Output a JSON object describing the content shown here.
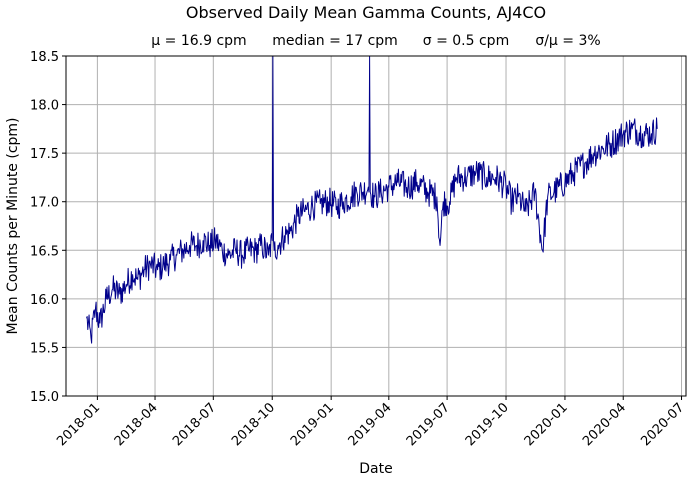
{
  "chart_data": {
    "type": "line",
    "title": "Observed Daily Mean Gamma Counts, AJ4CO",
    "stats": {
      "mean": "μ = 16.9 cpm",
      "median": "median = 17 cpm",
      "std": "σ = 0.5 cpm",
      "cv": "σ/μ = 3%"
    },
    "xlabel": "Date",
    "ylabel": "Mean Counts per Minute (cpm)",
    "xlim": [
      "2017-11-13",
      "2020-07-08"
    ],
    "ylim": [
      15.0,
      18.5
    ],
    "grid": true,
    "line_color": "#00008b",
    "x_ticks": [
      "2018-01",
      "2018-04",
      "2018-07",
      "2018-10",
      "2019-01",
      "2019-04",
      "2019-07",
      "2019-10",
      "2020-01",
      "2020-04",
      "2020-07"
    ],
    "y_ticks": [
      "15.0",
      "15.5",
      "16.0",
      "16.5",
      "17.0",
      "17.5",
      "18.0",
      "18.5"
    ],
    "series": [
      {
        "x": [
          "2017-12-15",
          "2017-12-22",
          "2017-12-29",
          "2018-01-05",
          "2018-01-15",
          "2018-01-25",
          "2018-02-05",
          "2018-02-15",
          "2018-02-25",
          "2018-03-05",
          "2018-03-15",
          "2018-03-25",
          "2018-04-05",
          "2018-04-15",
          "2018-04-25",
          "2018-05-05",
          "2018-05-15",
          "2018-05-25",
          "2018-06-05",
          "2018-06-15",
          "2018-06-25",
          "2018-07-05",
          "2018-07-15",
          "2018-07-25",
          "2018-08-05",
          "2018-08-15",
          "2018-08-25",
          "2018-09-05",
          "2018-09-15",
          "2018-09-25",
          "2018-10-01",
          "2018-10-02",
          "2018-10-03",
          "2018-10-04",
          "2018-10-10",
          "2018-10-20",
          "2018-10-30",
          "2018-11-10",
          "2018-11-20",
          "2018-12-01",
          "2018-12-15",
          "2018-12-28",
          "2019-01-10",
          "2019-01-20",
          "2019-02-01",
          "2019-02-10",
          "2019-02-20",
          "2019-02-28",
          "2019-03-01",
          "2019-03-02",
          "2019-03-03",
          "2019-03-10",
          "2019-03-20",
          "2019-04-01",
          "2019-04-15",
          "2019-05-01",
          "2019-05-15",
          "2019-06-01",
          "2019-06-15",
          "2019-06-20",
          "2019-06-25",
          "2019-07-05",
          "2019-07-15",
          "2019-08-01",
          "2019-08-15",
          "2019-09-01",
          "2019-09-15",
          "2019-10-01",
          "2019-10-10",
          "2019-10-20",
          "2019-11-01",
          "2019-11-15",
          "2019-11-27",
          "2019-12-05",
          "2019-12-15",
          "2020-01-01",
          "2020-01-15",
          "2020-02-01",
          "2020-02-15",
          "2020-03-01",
          "2020-03-15",
          "2020-04-01",
          "2020-04-15",
          "2020-05-01",
          "2020-05-15",
          "2020-05-24"
        ],
        "y": [
          15.8,
          15.6,
          15.9,
          15.75,
          16.0,
          16.1,
          16.05,
          16.15,
          16.25,
          16.2,
          16.3,
          16.35,
          16.3,
          16.35,
          16.4,
          16.45,
          16.5,
          16.55,
          16.55,
          16.6,
          16.55,
          16.6,
          16.5,
          16.45,
          16.5,
          16.45,
          16.5,
          16.5,
          16.55,
          16.45,
          16.6,
          18.5,
          16.6,
          16.5,
          16.55,
          16.65,
          16.7,
          16.85,
          16.9,
          16.95,
          16.98,
          17.0,
          16.95,
          17.0,
          17.05,
          17.1,
          17.1,
          17.15,
          17.1,
          18.5,
          17.1,
          17.05,
          17.1,
          17.15,
          17.2,
          17.15,
          17.2,
          17.1,
          17.05,
          16.55,
          17.0,
          17.0,
          17.25,
          17.25,
          17.3,
          17.25,
          17.25,
          17.15,
          17.0,
          17.05,
          16.9,
          17.1,
          16.5,
          17.05,
          17.1,
          17.2,
          17.3,
          17.4,
          17.5,
          17.55,
          17.6,
          17.7,
          17.75,
          17.7,
          17.7,
          17.75
        ]
      }
    ]
  }
}
